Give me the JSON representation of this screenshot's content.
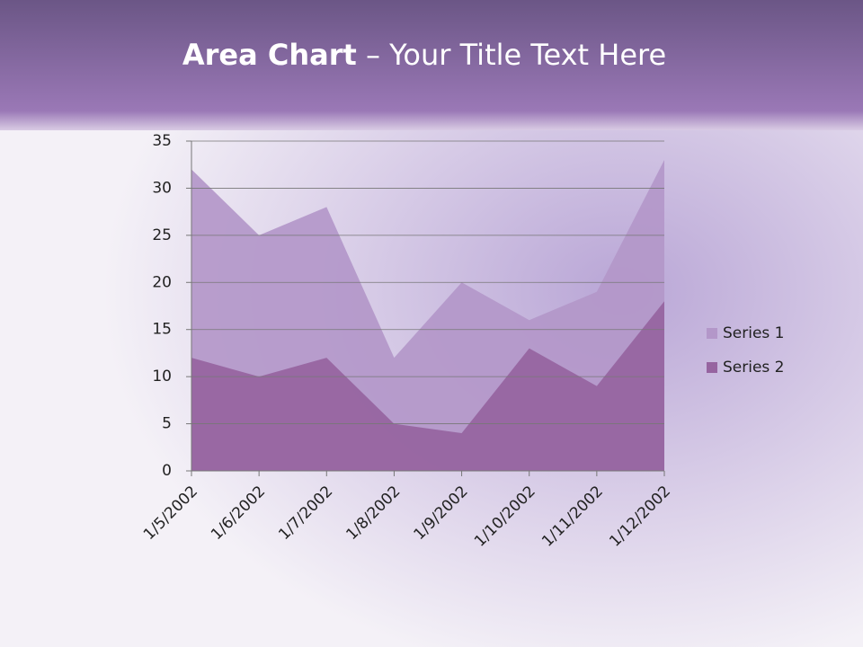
{
  "chart_data": {
    "type": "area",
    "title": "Area Chart",
    "title_suffix": "– Your Title Text Here",
    "categories": [
      "1/5/2002",
      "1/6/2002",
      "1/7/2002",
      "1/8/2002",
      "1/9/2002",
      "1/10/2002",
      "1/11/2002",
      "1/12/2002"
    ],
    "series": [
      {
        "name": "Series 1",
        "color": "#b397c9",
        "values": [
          32,
          25,
          28,
          12,
          20,
          16,
          19,
          33
        ]
      },
      {
        "name": "Series 2",
        "color": "#9664a0",
        "values": [
          12,
          10,
          12,
          5,
          4,
          13,
          9,
          18
        ]
      }
    ],
    "ylim": [
      0,
      35
    ],
    "yticks": [
      0,
      5,
      10,
      15,
      20,
      25,
      30,
      35
    ],
    "grid": true,
    "legend": "right"
  }
}
